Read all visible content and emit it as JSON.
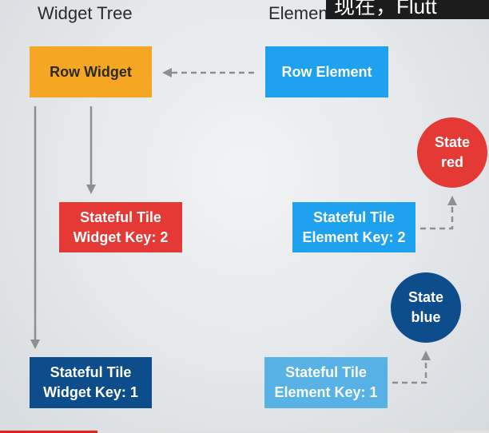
{
  "headers": {
    "widget_tree": "Widget Tree",
    "element_tree": "Element Tree"
  },
  "caption": "现在，Flutt",
  "nodes": {
    "row_widget": "Row Widget",
    "row_element": "Row Element",
    "stateful_widget_2": "Stateful Tile\nWidget Key: 2",
    "stateful_element_2": "Stateful Tile\nElement Key: 2",
    "stateful_widget_1": "Stateful Tile\nWidget Key: 1",
    "stateful_element_1": "Stateful Tile\nElement Key: 1",
    "state_red": "State\nred",
    "state_blue": "State\nblue"
  },
  "colors": {
    "orange": "#f5a623",
    "light_blue": "#1ea1ee",
    "red": "#e53935",
    "dark_blue": "#0d4d8c",
    "arrow": "#8a8f94"
  },
  "video_progress": 0.2
}
